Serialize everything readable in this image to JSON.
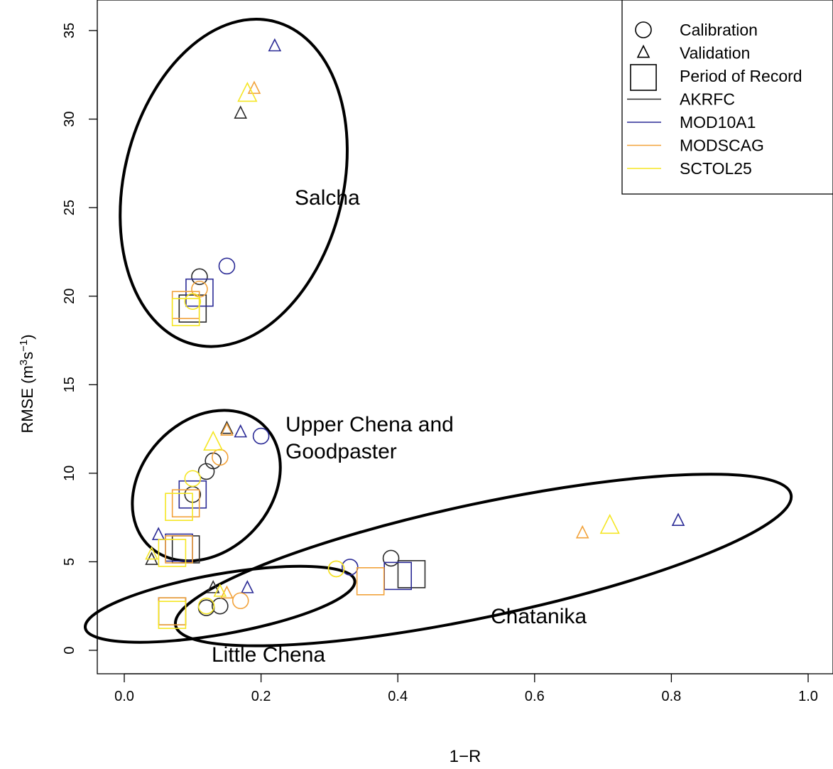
{
  "colors": {
    "AKRFC": "#2a2a2a",
    "MOD10A1": "#2b2b96",
    "MODSCAG": "#f2a23a",
    "SCTOL25": "#f5e624"
  },
  "chart_data": {
    "type": "scatter",
    "title": "",
    "xlabel": "1−R",
    "ylabel": "RMSE (m³s⁻¹)",
    "xlim": [
      0.0,
      1.0
    ],
    "ylim": [
      0,
      35
    ],
    "xticks": [
      "0.0",
      "0.2",
      "0.4",
      "0.6",
      "0.8",
      "1.0"
    ],
    "yticks": [
      "0",
      "5",
      "10",
      "15",
      "20",
      "25",
      "30",
      "35"
    ],
    "legend": {
      "placement": "top-right",
      "shape_entries": [
        {
          "label": "Calibration",
          "marker": "circle"
        },
        {
          "label": "Validation",
          "marker": "triangle"
        },
        {
          "label": "Period of Record",
          "marker": "square"
        }
      ],
      "line_entries": [
        {
          "label": "AKRFC",
          "color": "#2a2a2a"
        },
        {
          "label": "MOD10A1",
          "color": "#2b2b96"
        },
        {
          "label": "MODSCAG",
          "color": "#f2a23a"
        },
        {
          "label": "SCTOL25",
          "color": "#f5e624"
        }
      ]
    },
    "groups": [
      {
        "label": "Salcha",
        "ellipse": {
          "cx": 0.16,
          "cy": 26.4,
          "rx": 9.4,
          "ry": 0.16,
          "angle_deg": 14
        }
      },
      {
        "label": "Upper Chena and\nGoodpaster",
        "ellipse": {
          "cx": 0.12,
          "cy": 9.3,
          "rx": 4.7,
          "ry": 0.095,
          "angle_deg": 43
        }
      },
      {
        "label": "Little Chena",
        "ellipse": {
          "cx": 0.14,
          "cy": 2.6,
          "rx": 1.7,
          "ry": 0.2,
          "angle_deg": 10
        }
      },
      {
        "label": "Chatanika",
        "ellipse": {
          "cx": 0.525,
          "cy": 5.1,
          "rx": 3.2,
          "ry": 0.46,
          "angle_deg": 12
        }
      }
    ],
    "series": [
      {
        "name": "AKRFC",
        "points": [
          {
            "x": 0.11,
            "y": 21.1,
            "marker": "circle"
          },
          {
            "x": 0.17,
            "y": 30.3,
            "marker": "triangle"
          },
          {
            "x": 0.1,
            "y": 19.3,
            "marker": "square"
          },
          {
            "x": 0.12,
            "y": 10.1,
            "marker": "circle"
          },
          {
            "x": 0.13,
            "y": 10.7,
            "marker": "circle"
          },
          {
            "x": 0.1,
            "y": 8.8,
            "marker": "circle"
          },
          {
            "x": 0.15,
            "y": 12.5,
            "marker": "triangle"
          },
          {
            "x": 0.04,
            "y": 5.1,
            "marker": "triangle"
          },
          {
            "x": 0.09,
            "y": 5.7,
            "marker": "square"
          },
          {
            "x": 0.12,
            "y": 2.4,
            "marker": "circle"
          },
          {
            "x": 0.14,
            "y": 2.5,
            "marker": "circle"
          },
          {
            "x": 0.13,
            "y": 3.5,
            "marker": "triangle"
          },
          {
            "x": 0.07,
            "y": 2.2,
            "marker": "square"
          },
          {
            "x": 0.39,
            "y": 5.2,
            "marker": "circle"
          },
          {
            "x": 0.42,
            "y": 4.3,
            "marker": "square"
          }
        ]
      },
      {
        "name": "MOD10A1",
        "points": [
          {
            "x": 0.15,
            "y": 21.7,
            "marker": "circle"
          },
          {
            "x": 0.22,
            "y": 34.1,
            "marker": "triangle"
          },
          {
            "x": 0.11,
            "y": 20.2,
            "marker": "square"
          },
          {
            "x": 0.2,
            "y": 12.1,
            "marker": "circle"
          },
          {
            "x": 0.17,
            "y": 12.3,
            "marker": "triangle"
          },
          {
            "x": 0.05,
            "y": 6.5,
            "marker": "triangle"
          },
          {
            "x": 0.1,
            "y": 8.8,
            "marker": "square"
          },
          {
            "x": 0.08,
            "y": 5.8,
            "marker": "square"
          },
          {
            "x": 0.18,
            "y": 3.5,
            "marker": "triangle"
          },
          {
            "x": 0.33,
            "y": 4.7,
            "marker": "circle"
          },
          {
            "x": 0.4,
            "y": 4.2,
            "marker": "square"
          },
          {
            "x": 0.81,
            "y": 7.3,
            "marker": "triangle"
          }
        ]
      },
      {
        "name": "MODSCAG",
        "points": [
          {
            "x": 0.11,
            "y": 20.4,
            "marker": "circle"
          },
          {
            "x": 0.19,
            "y": 31.7,
            "marker": "triangle"
          },
          {
            "x": 0.09,
            "y": 19.5,
            "marker": "square"
          },
          {
            "x": 0.14,
            "y": 10.9,
            "marker": "circle"
          },
          {
            "x": 0.15,
            "y": 12.4,
            "marker": "triangle"
          },
          {
            "x": 0.09,
            "y": 8.3,
            "marker": "square"
          },
          {
            "x": 0.08,
            "y": 5.7,
            "marker": "square"
          },
          {
            "x": 0.17,
            "y": 2.8,
            "marker": "circle"
          },
          {
            "x": 0.15,
            "y": 3.2,
            "marker": "triangle"
          },
          {
            "x": 0.07,
            "y": 2.2,
            "marker": "square"
          },
          {
            "x": 0.31,
            "y": 4.6,
            "marker": "circle"
          },
          {
            "x": 0.36,
            "y": 3.9,
            "marker": "square"
          },
          {
            "x": 0.67,
            "y": 6.6,
            "marker": "triangle"
          }
        ]
      },
      {
        "name": "SCTOL25",
        "points": [
          {
            "x": 0.1,
            "y": 19.7,
            "marker": "circle"
          },
          {
            "x": 0.18,
            "y": 31.4,
            "marker": "triangle"
          },
          {
            "x": 0.09,
            "y": 19.1,
            "marker": "square"
          },
          {
            "x": 0.1,
            "y": 9.7,
            "marker": "circle"
          },
          {
            "x": 0.13,
            "y": 11.7,
            "marker": "triangle"
          },
          {
            "x": 0.04,
            "y": 5.4,
            "marker": "triangle"
          },
          {
            "x": 0.08,
            "y": 8.1,
            "marker": "square"
          },
          {
            "x": 0.07,
            "y": 5.5,
            "marker": "square"
          },
          {
            "x": 0.12,
            "y": 2.5,
            "marker": "circle"
          },
          {
            "x": 0.14,
            "y": 3.3,
            "marker": "triangle"
          },
          {
            "x": 0.07,
            "y": 2.0,
            "marker": "square"
          },
          {
            "x": 0.31,
            "y": 4.6,
            "marker": "circle"
          },
          {
            "x": 0.71,
            "y": 7.0,
            "marker": "triangle"
          }
        ]
      }
    ]
  }
}
